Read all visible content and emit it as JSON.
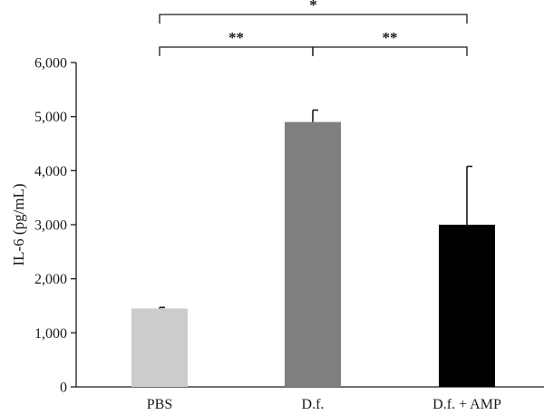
{
  "chart_data": {
    "type": "bar",
    "categories": [
      "PBS",
      "D.f.",
      "D.f. + AMP"
    ],
    "values": [
      1450,
      4900,
      3000
    ],
    "errors": [
      20,
      220,
      1080
    ],
    "colors": [
      "#cccccc",
      "#7f7f7f",
      "#000000"
    ],
    "xlabel": "",
    "ylabel": "IL-6 (pg/mL)",
    "ylim": [
      0,
      6000
    ],
    "yticks": [
      0,
      1000,
      2000,
      3000,
      4000,
      5000,
      6000
    ],
    "ytick_labels": [
      "0",
      "1,000",
      "2,000",
      "3,000",
      "4,000",
      "5,000",
      "6,000"
    ],
    "grid": false,
    "significance": [
      {
        "from": 0,
        "to": 1,
        "label": "**",
        "level": 1
      },
      {
        "from": 1,
        "to": 2,
        "label": "**",
        "level": 1
      },
      {
        "from": 0,
        "to": 2,
        "label": "*",
        "level": 2
      }
    ]
  }
}
